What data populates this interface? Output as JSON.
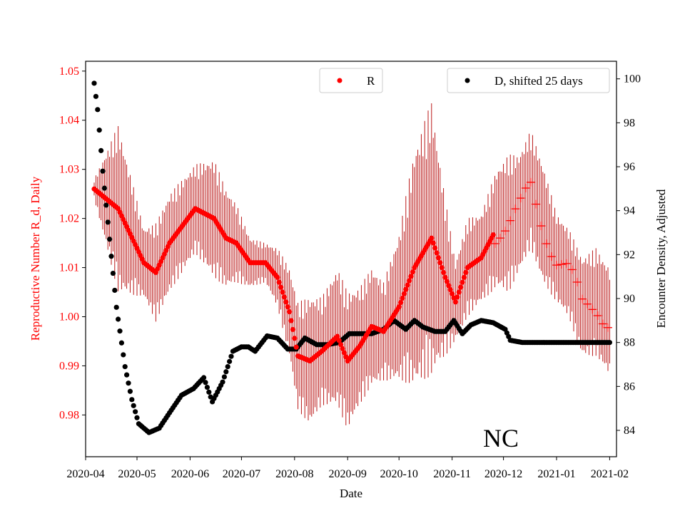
{
  "chart_data": {
    "type": "scatter",
    "state_label": "NC",
    "xlabel": "Date",
    "ylabel_left": "Reproductive Number R_d, Daily",
    "ylabel_right": "Encounter Density, Adjusted",
    "x_range": [
      "2020-04-01",
      "2021-02-05"
    ],
    "ylim_left": [
      0.9715,
      1.052
    ],
    "ylim_right": [
      82.8,
      100.8
    ],
    "x_ticks": [
      "2020-04",
      "2020-05",
      "2020-06",
      "2020-07",
      "2020-08",
      "2020-09",
      "2020-10",
      "2020-11",
      "2020-12",
      "2021-01",
      "2021-02"
    ],
    "x_tick_dates": [
      "2020-04-01",
      "2020-05-01",
      "2020-06-01",
      "2020-07-01",
      "2020-08-01",
      "2020-09-01",
      "2020-10-01",
      "2020-11-01",
      "2020-12-01",
      "2021-01-01",
      "2021-02-01"
    ],
    "y_ticks_left": [
      "0.98",
      "0.99",
      "1.00",
      "1.01",
      "1.02",
      "1.03",
      "1.04",
      "1.05"
    ],
    "y_ticks_right": [
      "84",
      "86",
      "88",
      "90",
      "92",
      "94",
      "96",
      "98",
      "100"
    ],
    "colors": {
      "r_series": "#ff0000",
      "r_error": "#b30000",
      "d_series": "#000000",
      "left_axis": "#ff0000"
    },
    "legend_r": {
      "label": "R",
      "placement": "top-center"
    },
    "legend_d": {
      "label": "D, shifted 25 days",
      "placement": "top-right"
    },
    "series_r": {
      "name": "R",
      "dates": [
        "2020-04-06",
        "2020-04-20",
        "2020-05-05",
        "2020-05-12",
        "2020-05-20",
        "2020-06-04",
        "2020-06-15",
        "2020-06-22",
        "2020-06-28",
        "2020-07-06",
        "2020-07-15",
        "2020-07-22",
        "2020-07-29",
        "2020-08-03",
        "2020-08-10",
        "2020-08-17",
        "2020-08-26",
        "2020-09-01",
        "2020-09-08",
        "2020-09-15",
        "2020-09-22",
        "2020-10-01",
        "2020-10-10",
        "2020-10-20",
        "2020-10-28",
        "2020-11-03",
        "2020-11-10",
        "2020-11-18",
        "2020-11-27",
        "2020-12-04",
        "2020-12-10",
        "2020-12-17",
        "2020-12-24",
        "2021-01-01",
        "2021-01-08",
        "2021-01-16",
        "2021-01-24",
        "2021-02-01"
      ],
      "values": [
        1.026,
        1.022,
        1.011,
        1.009,
        1.015,
        1.022,
        1.02,
        1.016,
        1.015,
        1.011,
        1.011,
        1.008,
        1.001,
        0.992,
        0.991,
        0.993,
        0.996,
        0.991,
        0.994,
        0.998,
        0.997,
        1.002,
        1.01,
        1.016,
        1.008,
        1.003,
        1.01,
        1.012,
        1.018,
        1.019,
        1.021,
        1.026,
        1.019,
        1.012,
        1.009,
        1.002,
        1.003,
        0.999
      ],
      "error_half_width": [
        0.002,
        0.017,
        0.007,
        0.01,
        0.01,
        0.009,
        0.012,
        0.01,
        0.008,
        0.005,
        0.004,
        0.006,
        0.009,
        0.011,
        0.013,
        0.011,
        0.014,
        0.014,
        0.012,
        0.012,
        0.01,
        0.015,
        0.024,
        0.028,
        0.016,
        0.008,
        0.01,
        0.009,
        0.012,
        0.014,
        0.012,
        0.012,
        0.012,
        0.009,
        0.009,
        0.01,
        0.011,
        0.011
      ],
      "marker_switch_date": "2020-11-26"
    },
    "series_d": {
      "name": "D, shifted 25 days",
      "dates": [
        "2020-04-06",
        "2020-04-08",
        "2020-04-11",
        "2020-04-15",
        "2020-04-19",
        "2020-04-24",
        "2020-04-28",
        "2020-05-02",
        "2020-05-08",
        "2020-05-14",
        "2020-05-20",
        "2020-05-27",
        "2020-06-03",
        "2020-06-09",
        "2020-06-14",
        "2020-06-20",
        "2020-06-26",
        "2020-07-01",
        "2020-07-05",
        "2020-07-09",
        "2020-07-16",
        "2020-07-22",
        "2020-07-28",
        "2020-08-02",
        "2020-08-07",
        "2020-08-14",
        "2020-08-20",
        "2020-08-27",
        "2020-09-02",
        "2020-09-08",
        "2020-09-15",
        "2020-09-22",
        "2020-09-28",
        "2020-10-05",
        "2020-10-10",
        "2020-10-15",
        "2020-10-22",
        "2020-10-28",
        "2020-11-02",
        "2020-11-07",
        "2020-11-12",
        "2020-11-18",
        "2020-11-25",
        "2020-12-02",
        "2020-12-05",
        "2020-12-12",
        "2020-12-20",
        "2020-12-31",
        "2021-01-12",
        "2021-01-25",
        "2021-02-01"
      ],
      "values": [
        99.8,
        98.6,
        95.8,
        92.7,
        89.6,
        86.9,
        85.4,
        84.3,
        83.9,
        84.1,
        84.8,
        85.6,
        85.9,
        86.4,
        85.3,
        86.2,
        87.6,
        87.8,
        87.8,
        87.6,
        88.3,
        88.2,
        87.7,
        87.7,
        88.2,
        87.9,
        87.9,
        88.0,
        88.4,
        88.4,
        88.4,
        88.6,
        89.0,
        88.6,
        89.0,
        88.7,
        88.5,
        88.5,
        89.0,
        88.4,
        88.8,
        89.0,
        88.9,
        88.6,
        88.1,
        88.0,
        88.0,
        88.0,
        88.0,
        88.0,
        88.0
      ]
    }
  }
}
